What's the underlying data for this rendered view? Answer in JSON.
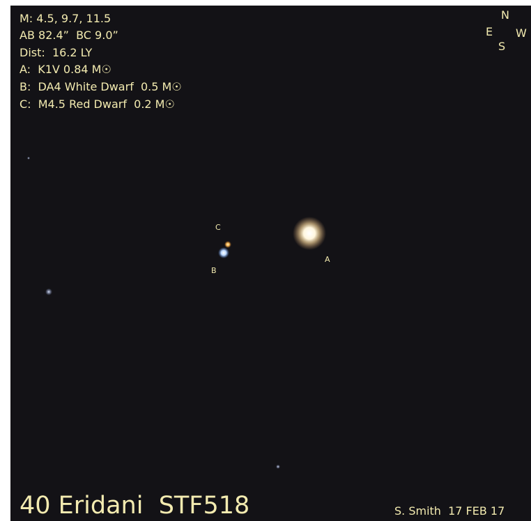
{
  "annotations": {
    "lines": [
      "M: 4.5, 9.7, 11.5",
      "AB 82.4”  BC 9.0”",
      "Dist:  16.2 LY",
      "A:  K1V 0.84 M☉",
      "B:  DA4 White Dwarf  0.5 M☉",
      "C:  M4.5 Red Dwarf  0.2 M☉"
    ]
  },
  "compass": {
    "north": "N",
    "east": "E",
    "west": "W",
    "south": "S"
  },
  "star_labels": {
    "a": "A",
    "b": "B",
    "c": "C"
  },
  "title": "40 Eridani  STF518",
  "credit": "S. Smith  17 FEB 17"
}
